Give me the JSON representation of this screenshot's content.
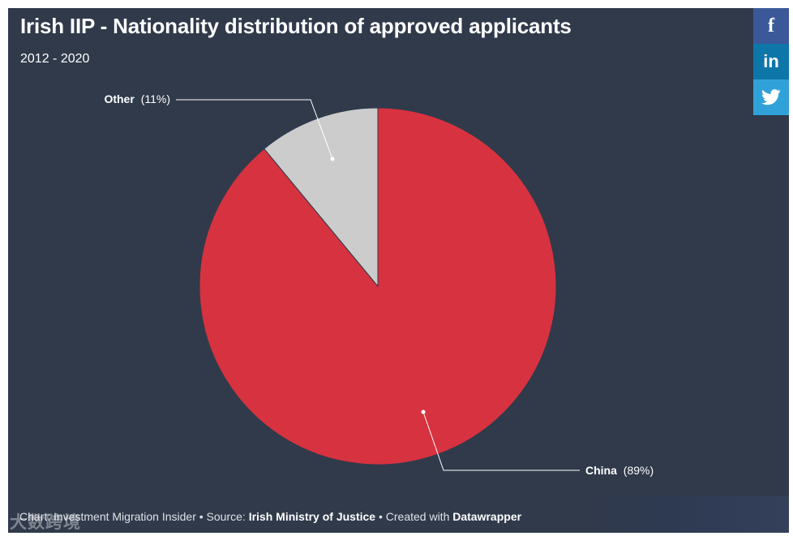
{
  "header": {
    "title": "Irish IIP - Nationality distribution of approved applicants",
    "subtitle": "2012 - 2020"
  },
  "chart_data": {
    "type": "pie",
    "title": "Irish IIP - Nationality distribution of approved applicants",
    "subtitle": "2012 - 2020",
    "slices": [
      {
        "name": "China",
        "value": 89,
        "label": "China",
        "pct_text": "(89%)",
        "color": "#d7323f"
      },
      {
        "name": "Other",
        "value": 11,
        "label": "Other",
        "pct_text": "(11%)",
        "color": "#cccccc"
      }
    ]
  },
  "footer": {
    "prefix": "Chart: ",
    "author": "Investment Migration Insider",
    "sep1": " • Source: ",
    "source": "Irish Ministry of Justice",
    "sep2": " • Created with ",
    "tool": "Datawrapper"
  },
  "watermark": {
    "text": "大数跨境"
  },
  "share": [
    {
      "name": "facebook",
      "glyph": "f"
    },
    {
      "name": "linkedin",
      "glyph": "in"
    },
    {
      "name": "twitter",
      "glyph": ""
    }
  ],
  "colors": {
    "background": "#303a4b",
    "china": "#d7323f",
    "other": "#cccccc",
    "facebook": "#3b5998",
    "linkedin": "#0e76a8",
    "twitter": "#31a2d9"
  }
}
